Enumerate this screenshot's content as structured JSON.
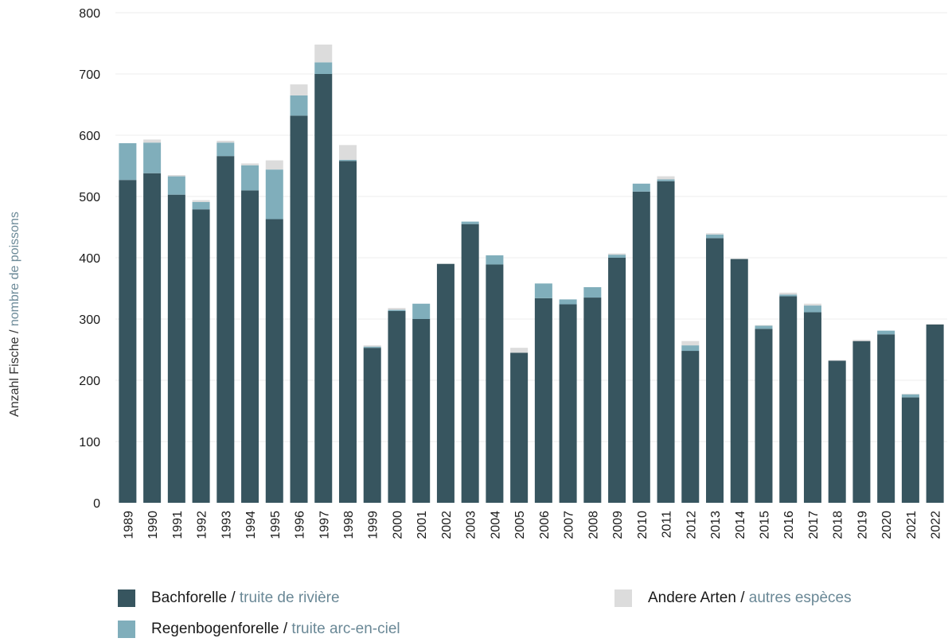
{
  "chart_data": {
    "type": "bar",
    "stacked": true,
    "ylabel_de": "Anzahl Fische",
    "ylabel_sep": " / ",
    "ylabel_fr": "nombre de poissons",
    "ylim": [
      0,
      800
    ],
    "yticks": [
      "0",
      "100",
      "200",
      "300",
      "400",
      "500",
      "600",
      "700",
      "800"
    ],
    "grid": true,
    "legend_position": "bottom",
    "categories": [
      "1989",
      "1990",
      "1991",
      "1992",
      "1993",
      "1994",
      "1995",
      "1996",
      "1997",
      "1998",
      "1999",
      "2000",
      "2001",
      "2002",
      "2003",
      "2004",
      "2005",
      "2006",
      "2007",
      "2008",
      "2009",
      "2010",
      "2011",
      "2012",
      "2013",
      "2014",
      "2015",
      "2016",
      "2017",
      "2018",
      "2019",
      "2020",
      "2021",
      "2022"
    ],
    "series": [
      {
        "name_de": "Bachforelle",
        "name_fr": "truite de rivière",
        "color": "#37555f",
        "values": [
          527,
          538,
          503,
          479,
          566,
          510,
          463,
          632,
          700,
          558,
          253,
          313,
          300,
          390,
          455,
          389,
          245,
          334,
          324,
          335,
          400,
          508,
          525,
          248,
          432,
          398,
          284,
          337,
          311,
          232,
          264,
          275,
          172,
          291
        ]
      },
      {
        "name_de": "Regenbogenforelle",
        "name_fr": "truite arc-en-ciel",
        "color": "#80aebb",
        "values": [
          60,
          50,
          30,
          12,
          22,
          41,
          81,
          33,
          19,
          2,
          2,
          2,
          25,
          0,
          4,
          15,
          0,
          24,
          8,
          17,
          5,
          13,
          3,
          9,
          6,
          0,
          5,
          3,
          11,
          0,
          0,
          6,
          5,
          0
        ]
      },
      {
        "name_de": "Andere Arten",
        "name_fr": "autres espèces",
        "color": "#dcdcdc",
        "values": [
          0,
          5,
          2,
          3,
          3,
          3,
          15,
          18,
          29,
          24,
          2,
          3,
          0,
          0,
          0,
          0,
          8,
          0,
          0,
          0,
          2,
          0,
          5,
          7,
          2,
          0,
          1,
          3,
          3,
          1,
          2,
          0,
          1,
          1
        ]
      }
    ]
  },
  "legend": [
    {
      "de": "Bachforelle",
      "sep": " / ",
      "fr": "truite de rivière",
      "color": "#37555f"
    },
    {
      "de": "Regenbogenforelle",
      "sep": " / ",
      "fr": "truite arc-en-ciel",
      "color": "#80aebb"
    },
    {
      "de": "Andere Arten",
      "sep": " / ",
      "fr": "autres espèces",
      "color": "#dcdcdc"
    }
  ]
}
